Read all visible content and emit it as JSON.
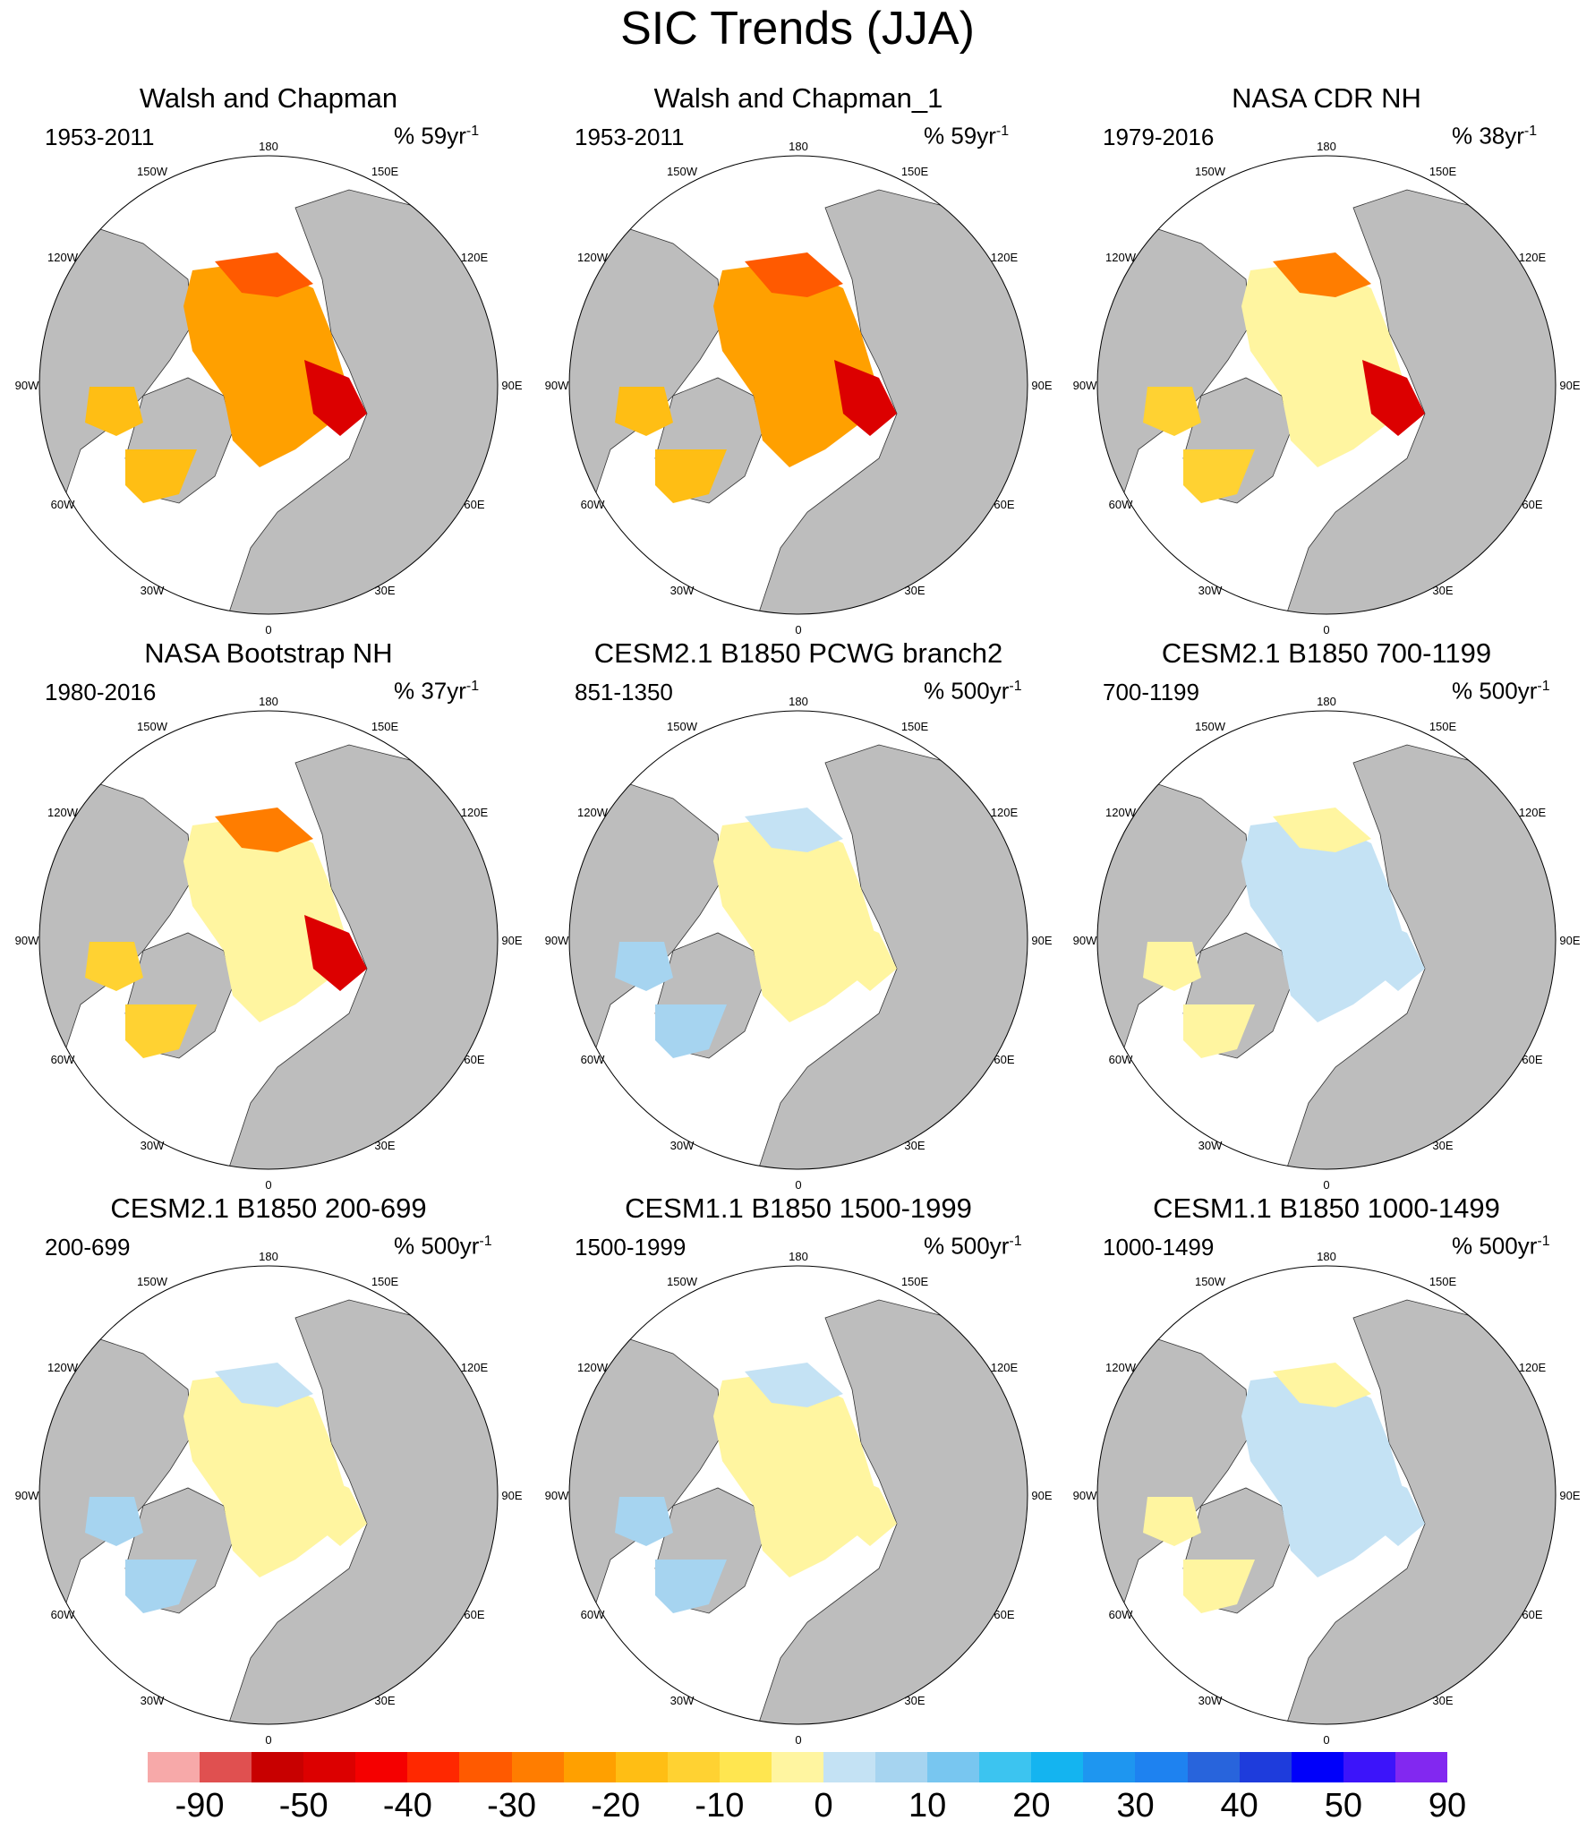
{
  "title": "SIC Trends (JJA)",
  "panels": [
    {
      "title": "Walsh and Chapman",
      "years": "1953-2011",
      "units_pre": "% 59yr",
      "units_exp": "-1",
      "pattern": "obs"
    },
    {
      "title": "Walsh and Chapman_1",
      "years": "1953-2011",
      "units_pre": "% 59yr",
      "units_exp": "-1",
      "pattern": "obs"
    },
    {
      "title": "NASA CDR NH",
      "years": "1979-2016",
      "units_pre": "% 38yr",
      "units_exp": "-1",
      "pattern": "sat"
    },
    {
      "title": "NASA Bootstrap NH",
      "years": "1980-2016",
      "units_pre": "% 37yr",
      "units_exp": "-1",
      "pattern": "sat"
    },
    {
      "title": "CESM2.1 B1850 PCWG branch2",
      "years": "851-1350",
      "units_pre": "% 500yr",
      "units_exp": "-1",
      "pattern": "model"
    },
    {
      "title": "CESM2.1 B1850 700-1199",
      "years": "700-1199",
      "units_pre": "% 500yr",
      "units_exp": "-1",
      "pattern": "model-blue"
    },
    {
      "title": "CESM2.1 B1850 200-699",
      "years": "200-699",
      "units_pre": "% 500yr",
      "units_exp": "-1",
      "pattern": "model"
    },
    {
      "title": "CESM1.1 B1850 1500-1999",
      "years": "1500-1999",
      "units_pre": "% 500yr",
      "units_exp": "-1",
      "pattern": "model"
    },
    {
      "title": "CESM1.1 B1850 1000-1499",
      "years": "1000-1499",
      "units_pre": "% 500yr",
      "units_exp": "-1",
      "pattern": "model-blue"
    }
  ],
  "map_labels": {
    "lon_top": "180",
    "lon_bottom": "0",
    "lon_150w": "150W",
    "lon_150e": "150E",
    "lon_120w": "120W",
    "lon_120e": "120E",
    "lon_90w": "90W",
    "lon_90e": "90E",
    "lon_60w": "60W",
    "lon_60e": "60E",
    "lon_30w": "30W",
    "lon_30e": "30E"
  },
  "colorbar": {
    "colors": [
      "#f7a9a9",
      "#e05050",
      "#c80000",
      "#dc0000",
      "#f50000",
      "#ff2800",
      "#ff5a00",
      "#ff7d00",
      "#ffa000",
      "#ffbe14",
      "#ffd232",
      "#ffe650",
      "#fff5a0",
      "#c4e2f4",
      "#a6d4f0",
      "#78c6f0",
      "#3cc4f0",
      "#14b4f0",
      "#1e96f0",
      "#1e82f0",
      "#2864dc",
      "#1e3cdc",
      "#0000fa",
      "#3c14fa",
      "#8228f0"
    ],
    "labels": [
      "-90",
      "-50",
      "-40",
      "-30",
      "-20",
      "-10",
      "0",
      "10",
      "20",
      "30",
      "40",
      "50",
      "90"
    ]
  }
}
